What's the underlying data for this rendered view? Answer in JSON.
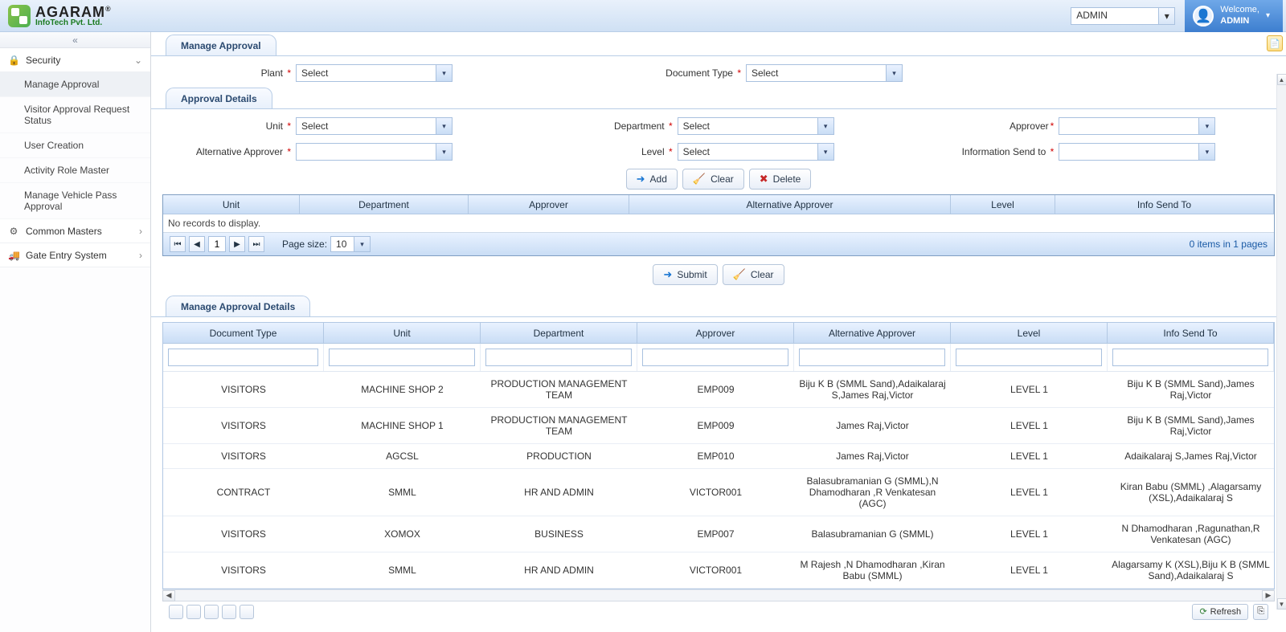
{
  "brand": {
    "name": "AGARAM",
    "sub": "InfoTech Pvt. Ltd."
  },
  "topbar": {
    "user_select_value": "ADMIN",
    "welcome_label": "Welcome,",
    "welcome_user": "ADMIN"
  },
  "sidebar": {
    "groups": [
      {
        "label": "Security",
        "icon_glyph": "🔒",
        "expanded": true,
        "items": [
          {
            "label": "Manage Approval",
            "active": true
          },
          {
            "label": "Visitor Approval Request Status"
          },
          {
            "label": "User Creation"
          },
          {
            "label": "Activity Role Master"
          },
          {
            "label": "Manage Vehicle Pass Approval"
          }
        ]
      },
      {
        "label": "Common Masters",
        "icon_glyph": "⚙",
        "expanded": false
      },
      {
        "label": "Gate Entry System",
        "icon_glyph": "🚚",
        "expanded": false
      }
    ]
  },
  "page": {
    "tab1_title": "Manage Approval",
    "form1": {
      "plant_label": "Plant",
      "plant_value": "Select",
      "doctype_label": "Document Type",
      "doctype_value": "Select"
    },
    "tab2_title": "Approval Details",
    "form2": {
      "unit_label": "Unit",
      "unit_value": "Select",
      "dept_label": "Department",
      "dept_value": "Select",
      "approver_label": "Approver",
      "approver_value": "",
      "altapprover_label": "Alternative Approver",
      "altapprover_value": "",
      "level_label": "Level",
      "level_value": "Select",
      "infosend_label": "Information Send to",
      "infosend_value": ""
    },
    "buttons": {
      "add": "Add",
      "clear": "Clear",
      "delete": "Delete",
      "submit": "Submit",
      "clear2": "Clear",
      "refresh": "Refresh"
    },
    "thin_grid": {
      "columns": [
        "Unit",
        "Department",
        "Approver",
        "Alternative Approver",
        "Level",
        "Info Send To"
      ],
      "empty_text": "No records to display.",
      "page_size_label": "Page size:",
      "page_size_value": "10",
      "page_number": "1",
      "summary": "0 items in 1 pages"
    },
    "tab3_title": "Manage Approval Details",
    "details_grid": {
      "columns": [
        "Document Type",
        "Unit",
        "Department",
        "Approver",
        "Alternative Approver",
        "Level",
        "Info Send To"
      ],
      "rows": [
        [
          "VISITORS",
          "MACHINE SHOP 2",
          "PRODUCTION MANAGEMENT TEAM",
          "EMP009",
          "Biju K B (SMML Sand),Adaikalaraj S,James Raj,Victor",
          "LEVEL 1",
          "Biju K B (SMML Sand),James Raj,Victor"
        ],
        [
          "VISITORS",
          "MACHINE SHOP 1",
          "PRODUCTION MANAGEMENT TEAM",
          "EMP009",
          "James Raj,Victor",
          "LEVEL 1",
          "Biju K B (SMML Sand),James Raj,Victor"
        ],
        [
          "VISITORS",
          "AGCSL",
          "PRODUCTION",
          "EMP010",
          "James Raj,Victor",
          "LEVEL 1",
          "Adaikalaraj S,James Raj,Victor"
        ],
        [
          "CONTRACT",
          "SMML",
          "HR AND ADMIN",
          "VICTOR001",
          "Balasubramanian G (SMML),N Dhamodharan ,R Venkatesan (AGC)",
          "LEVEL 1",
          "Kiran Babu (SMML) ,Alagarsamy (XSL),Adaikalaraj S"
        ],
        [
          "VISITORS",
          "XOMOX",
          "BUSINESS",
          "EMP007",
          "Balasubramanian G (SMML)",
          "LEVEL 1",
          "N Dhamodharan ,Ragunathan,R Venkatesan (AGC)"
        ],
        [
          "VISITORS",
          "SMML",
          "HR AND ADMIN",
          "VICTOR001",
          "M Rajesh ,N Dhamodharan ,Kiran Babu (SMML)",
          "LEVEL 1",
          "Alagarsamy K (XSL),Biju K B (SMML Sand),Adaikalaraj S"
        ]
      ]
    }
  },
  "colors": {
    "header_grad_top": "#e9f2ff",
    "header_grad_bot": "#c9ddf5",
    "border": "#b2c8e3",
    "accent": "#3d7ecf"
  }
}
